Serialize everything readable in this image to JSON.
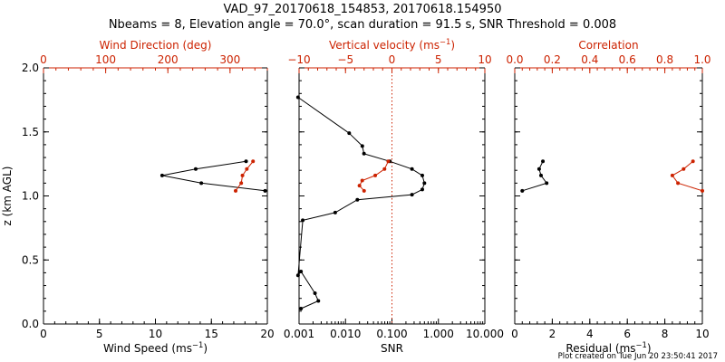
{
  "title_line1": "VAD_97_20170618_154853, 20170618.154950",
  "title_line2": "Nbeams = 8, Elevation angle = 70.0°, scan duration = 91.5 s, SNR Threshold = 0.008",
  "footer": "Plot created on Tue Jun 20 23:50:41 2017",
  "colors": {
    "primary": "#000000",
    "secondary": "#cc2200"
  },
  "chart_data": [
    {
      "type": "line",
      "id": "wind",
      "xlabel": "Wind Speed (ms",
      "xlabel_sup": "−1",
      "xlabel_tail": ")",
      "ylabel": "z (km AGL)",
      "xlim": [
        0,
        20
      ],
      "ylim": [
        0,
        2
      ],
      "xticks": [
        "0",
        "5",
        "10",
        "15",
        "20"
      ],
      "xtick_values": [
        0,
        5,
        10,
        15,
        20
      ],
      "yticks": [
        "0.0",
        "0.5",
        "1.0",
        "1.5",
        "2.0"
      ],
      "ytick_values": [
        0,
        0.5,
        1.0,
        1.5,
        2.0
      ],
      "top_label": "Wind Direction (deg)",
      "top_lim": [
        0,
        360
      ],
      "top_ticks": [
        "0",
        "100",
        "200",
        "300"
      ],
      "top_tick_values": [
        0,
        100,
        200,
        300
      ],
      "series": [
        {
          "name": "Wind Speed",
          "axis": "bottom",
          "color": "#000000",
          "x": [
            19.8,
            14.1,
            10.6,
            13.6,
            18.1
          ],
          "y": [
            1.04,
            1.1,
            1.16,
            1.21,
            1.27
          ]
        },
        {
          "name": "Wind Direction",
          "axis": "top",
          "color": "#cc2200",
          "x": [
            309,
            318,
            320,
            327,
            337
          ],
          "y": [
            1.04,
            1.1,
            1.16,
            1.21,
            1.27
          ]
        }
      ]
    },
    {
      "type": "line",
      "id": "snr",
      "xlabel": "SNR",
      "xscale": "log",
      "xlim": [
        0.001,
        10
      ],
      "ylim": [
        0,
        2
      ],
      "xticks": [
        "0.001",
        "0.010",
        "0.100",
        "1.000",
        "10.000"
      ],
      "xtick_values": [
        0.001,
        0.01,
        0.1,
        1,
        10
      ],
      "top_label": "Vertical velocity (ms",
      "top_label_sup": "−1",
      "top_label_tail": ")",
      "top_lim": [
        -10,
        10
      ],
      "top_ticks": [
        "−10",
        "−5",
        "0",
        "5",
        "10"
      ],
      "top_tick_values": [
        -10,
        -5,
        0,
        5,
        10
      ],
      "zero_line": 0,
      "series": [
        {
          "name": "SNR",
          "axis": "bottom",
          "color": "#000000",
          "x": [
            0.0011,
            0.0026,
            0.0022,
            0.0011,
            0.00095,
            0.0012,
            0.006,
            0.018,
            0.27,
            0.45,
            0.5,
            0.45,
            0.27,
            0.09,
            0.025,
            0.023,
            0.012,
            0.00095
          ],
          "y": [
            0.12,
            0.18,
            0.24,
            0.41,
            0.38,
            0.81,
            0.87,
            0.97,
            1.01,
            1.05,
            1.1,
            1.16,
            1.21,
            1.27,
            1.33,
            1.39,
            1.49,
            1.77
          ]
        },
        {
          "name": "Vertical velocity",
          "axis": "top",
          "color": "#cc2200",
          "x": [
            -3.0,
            -3.5,
            -3.2,
            -1.8,
            -0.8,
            -0.4
          ],
          "y": [
            1.04,
            1.08,
            1.12,
            1.16,
            1.21,
            1.27
          ]
        }
      ]
    },
    {
      "type": "line",
      "id": "residual",
      "xlabel": "Residual (ms",
      "xlabel_sup": "−1",
      "xlabel_tail": ")",
      "xlim": [
        0,
        10
      ],
      "ylim": [
        0,
        2
      ],
      "xticks": [
        "0",
        "2",
        "4",
        "6",
        "8",
        "10"
      ],
      "xtick_values": [
        0,
        2,
        4,
        6,
        8,
        10
      ],
      "top_label": "Correlation",
      "top_lim": [
        0,
        1
      ],
      "top_ticks": [
        "0.0",
        "0.2",
        "0.4",
        "0.6",
        "0.8",
        "1.0"
      ],
      "top_tick_values": [
        0,
        0.2,
        0.4,
        0.6,
        0.8,
        1.0
      ],
      "series": [
        {
          "name": "Residual",
          "axis": "bottom",
          "color": "#000000",
          "x": [
            0.4,
            1.7,
            1.4,
            1.3,
            1.5
          ],
          "y": [
            1.04,
            1.1,
            1.16,
            1.21,
            1.27
          ]
        },
        {
          "name": "Correlation",
          "axis": "top",
          "color": "#cc2200",
          "x": [
            1.0,
            0.87,
            0.84,
            0.9,
            0.95
          ],
          "y": [
            1.04,
            1.1,
            1.16,
            1.21,
            1.27
          ]
        }
      ]
    }
  ]
}
